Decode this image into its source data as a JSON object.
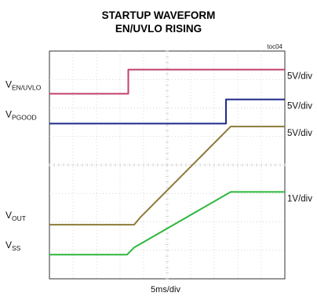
{
  "chart_data": {
    "type": "line",
    "title": "STARTUP WAVEFORM",
    "subtitle": "EN/UVLO RISING",
    "figure_tag": "toc04",
    "x_scale_label": "5ms/div",
    "x_divisions": 10,
    "y_divisions": 8,
    "grid": true,
    "series": [
      {
        "key": "en",
        "label_main": "V",
        "label_sub": "EN/UVLO",
        "scale": "5V/div",
        "color": "#c2406f",
        "points": [
          [
            0,
            6.5
          ],
          [
            3.35,
            6.5
          ],
          [
            3.35,
            7.35
          ],
          [
            10,
            7.35
          ]
        ]
      },
      {
        "key": "pgood",
        "label_main": "V",
        "label_sub": "PGOOD",
        "scale": "5V/div",
        "color": "#1f2a8a",
        "points": [
          [
            0,
            5.45
          ],
          [
            7.5,
            5.45
          ],
          [
            7.5,
            6.3
          ],
          [
            10,
            6.3
          ]
        ]
      },
      {
        "key": "out",
        "label_main": "V",
        "label_sub": "OUT",
        "scale": "5V/div",
        "color": "#8c7a3a",
        "points": [
          [
            0,
            1.9
          ],
          [
            3.6,
            1.9
          ],
          [
            3.85,
            2.15
          ],
          [
            7.7,
            5.35
          ],
          [
            10,
            5.35
          ]
        ]
      },
      {
        "key": "ss",
        "label_main": "V",
        "label_sub": "SS",
        "scale": "1V/div",
        "color": "#2db83d",
        "points": [
          [
            0,
            0.85
          ],
          [
            3.3,
            0.85
          ],
          [
            3.6,
            1.1
          ],
          [
            7.7,
            3.05
          ],
          [
            10,
            3.05
          ]
        ]
      }
    ]
  }
}
